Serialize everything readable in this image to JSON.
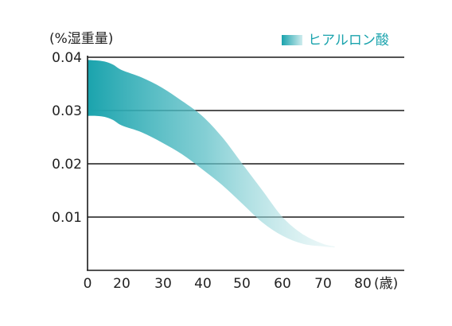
{
  "chart_data": {
    "type": "area",
    "ylabel": "(%湿重量)",
    "xlabel": "(歳)",
    "x_ticks": [
      "0",
      "20",
      "30",
      "40",
      "50",
      "60",
      "70",
      "80"
    ],
    "y_ticks": [
      "0.04",
      "0.03",
      "0.02",
      "0.01"
    ],
    "xlim": [
      0,
      85
    ],
    "ylim": [
      0,
      0.04
    ],
    "grid": true,
    "legend_position": "top-right",
    "series": [
      {
        "name": "ヒアルロン酸",
        "color": "#1aa3ad",
        "x": [
          0,
          5,
          10,
          15,
          20,
          25,
          30,
          35,
          40,
          45,
          50,
          55,
          60,
          65,
          70,
          73
        ],
        "upper": [
          0.0395,
          0.0394,
          0.0392,
          0.0386,
          0.0376,
          0.0362,
          0.0343,
          0.0318,
          0.029,
          0.025,
          0.02,
          0.015,
          0.01,
          0.0068,
          0.005,
          0.0045
        ],
        "lower": [
          0.029,
          0.029,
          0.0288,
          0.0282,
          0.0272,
          0.0259,
          0.024,
          0.0218,
          0.019,
          0.016,
          0.0125,
          0.009,
          0.0065,
          0.005,
          0.0045,
          0.0043
        ]
      }
    ]
  },
  "legend": {
    "label": "ヒアルロン酸"
  }
}
